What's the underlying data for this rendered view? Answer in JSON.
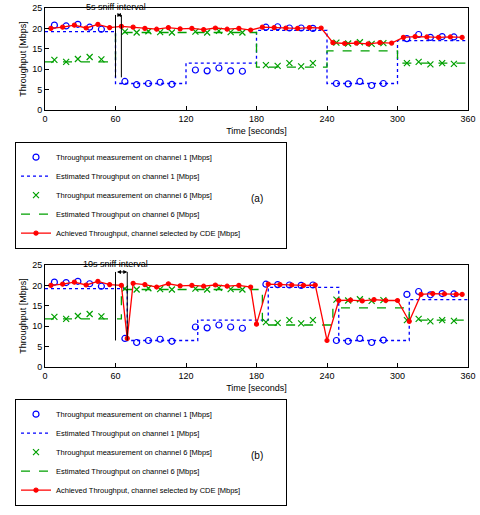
{
  "chart_data": [
    {
      "type": "line",
      "label": "(a)",
      "xlabel": "Time [seconds]",
      "ylabel": "Throughput [Mbps]",
      "xlim": [
        0,
        360
      ],
      "ylim": [
        0,
        25
      ],
      "xticks": [
        0,
        60,
        120,
        180,
        240,
        300,
        360
      ],
      "yticks": [
        0,
        5,
        10,
        15,
        20,
        25
      ],
      "grid": false,
      "legend": "below",
      "annotations": [
        {
          "text": "5s sniff interval",
          "x0": 60,
          "x1": 65,
          "y": 23.3,
          "y_end": 8
        }
      ],
      "series": [
        {
          "name": "Throughput measurement on channel 1 [Mbps]",
          "color": "#0000ff",
          "marker": "circle-open",
          "line_style": "none",
          "x": [
            8,
            18,
            28,
            38,
            48,
            68,
            78,
            88,
            98,
            108,
            128,
            138,
            148,
            158,
            168,
            188,
            198,
            208,
            218,
            228,
            248,
            258,
            268,
            278,
            288,
            308,
            318,
            328,
            338,
            348
          ],
          "values": [
            20.8,
            20.6,
            21.0,
            20.3,
            19.8,
            7.0,
            6.2,
            6.5,
            6.8,
            6.3,
            9.8,
            9.6,
            10.3,
            9.6,
            9.5,
            20.3,
            20.4,
            20.1,
            20.1,
            20.0,
            6.5,
            6.4,
            7.0,
            6.0,
            6.5,
            17.5,
            18.5,
            17.8,
            18.0,
            17.9
          ]
        },
        {
          "name": "Estimated Throughput on channel 1 [Mbps]",
          "color": "#0000ff",
          "marker": "none",
          "line_style": "dotted",
          "type": "step",
          "x": [
            0,
            60,
            120,
            180,
            240,
            300,
            360
          ],
          "values": [
            19.2,
            6.5,
            11.5,
            19.5,
            6.5,
            17.0,
            17.0
          ]
        },
        {
          "name": "Throughput measurement on channel 6 [Mbps]",
          "color": "#00a000",
          "marker": "x",
          "line_style": "none",
          "x": [
            8,
            18,
            28,
            38,
            48,
            68,
            78,
            88,
            98,
            108,
            128,
            138,
            148,
            158,
            168,
            188,
            198,
            208,
            218,
            228,
            248,
            258,
            268,
            278,
            288,
            308,
            318,
            328,
            338,
            348
          ],
          "values": [
            12.3,
            11.8,
            12.5,
            13.0,
            12.4,
            19.2,
            19.0,
            19.3,
            19.1,
            19.0,
            19.2,
            19.0,
            19.4,
            19.1,
            19.0,
            11.0,
            10.8,
            11.5,
            10.7,
            11.5,
            16.5,
            16.3,
            16.6,
            16.2,
            16.4,
            11.5,
            11.8,
            11.2,
            11.5,
            11.3
          ]
        },
        {
          "name": "Estimated Throughput on channel 6 [Mbps]",
          "color": "#00a000",
          "marker": "none",
          "line_style": "dashed",
          "type": "step",
          "x": [
            0,
            60,
            180,
            240,
            300,
            360
          ],
          "values": [
            11.8,
            19.0,
            10.5,
            14.5,
            11.5,
            11.5
          ]
        },
        {
          "name": "Achieved Throughput, channel selected by CDE [Mbps]",
          "color": "#ff0000",
          "marker": "circle",
          "line_style": "solid",
          "x": [
            5,
            15,
            25,
            35,
            45,
            55,
            65,
            75,
            85,
            95,
            105,
            115,
            125,
            135,
            145,
            155,
            165,
            175,
            185,
            195,
            205,
            215,
            225,
            235,
            245,
            255,
            265,
            275,
            285,
            295,
            305,
            315,
            325,
            335,
            345,
            355
          ],
          "values": [
            20.0,
            20.3,
            20.8,
            20.1,
            21.0,
            20.2,
            20.5,
            20.3,
            20.0,
            19.8,
            20.2,
            19.9,
            20.0,
            19.7,
            20.1,
            19.8,
            20.0,
            19.6,
            20.3,
            20.2,
            20.1,
            20.0,
            20.2,
            20.1,
            16.5,
            16.3,
            16.4,
            16.2,
            16.5,
            16.4,
            17.8,
            18.0,
            17.9,
            17.8,
            17.9,
            17.8
          ]
        }
      ]
    },
    {
      "type": "line",
      "label": "(b)",
      "xlabel": "Time [seconds]",
      "ylabel": "Throughput [Mbps]",
      "xlim": [
        0,
        360
      ],
      "ylim": [
        0,
        25
      ],
      "xticks": [
        0,
        60,
        120,
        180,
        240,
        300,
        360
      ],
      "yticks": [
        0,
        5,
        10,
        15,
        20,
        25
      ],
      "grid": false,
      "legend": "below",
      "annotations": [
        {
          "text": "10s sniff interval",
          "x0": 60,
          "x1": 70,
          "y": 23.3,
          "y_end": 6.5
        }
      ],
      "series": [
        {
          "name": "Throughput measurement on channel 1 [Mbps]",
          "color": "#0000ff",
          "marker": "circle-open",
          "line_style": "none",
          "x": [
            8,
            18,
            28,
            38,
            48,
            68,
            78,
            88,
            98,
            108,
            128,
            138,
            148,
            158,
            168,
            188,
            198,
            208,
            218,
            228,
            248,
            258,
            268,
            278,
            288,
            308,
            318,
            328,
            338,
            348
          ],
          "values": [
            20.8,
            20.7,
            21.0,
            20.4,
            19.8,
            7.0,
            6.0,
            6.5,
            6.8,
            6.3,
            9.8,
            9.6,
            10.3,
            9.8,
            9.5,
            20.3,
            20.2,
            20.1,
            20.0,
            20.1,
            6.5,
            6.3,
            7.0,
            6.0,
            6.6,
            17.8,
            18.5,
            17.7,
            18.0,
            17.9
          ]
        },
        {
          "name": "Estimated Throughput on channel 1 [Mbps]",
          "color": "#0000ff",
          "marker": "none",
          "line_style": "dotted",
          "type": "step",
          "x": [
            0,
            70,
            130,
            190,
            250,
            310,
            360
          ],
          "values": [
            19.2,
            6.5,
            11.5,
            19.5,
            6.5,
            16.5,
            16.5
          ]
        },
        {
          "name": "Throughput measurement on channel 6 [Mbps]",
          "color": "#00a000",
          "marker": "x",
          "line_style": "none",
          "x": [
            8,
            18,
            28,
            38,
            48,
            68,
            78,
            88,
            98,
            108,
            128,
            138,
            148,
            158,
            168,
            188,
            198,
            208,
            218,
            228,
            248,
            258,
            268,
            278,
            288,
            308,
            318,
            328,
            338,
            348
          ],
          "values": [
            12.3,
            11.8,
            12.5,
            13.0,
            12.4,
            19.2,
            19.0,
            19.3,
            19.1,
            19.0,
            19.2,
            19.0,
            19.4,
            19.1,
            19.0,
            11.0,
            10.8,
            11.5,
            10.7,
            11.5,
            16.5,
            16.3,
            16.6,
            16.2,
            16.4,
            11.5,
            11.8,
            11.2,
            11.5,
            11.3
          ]
        },
        {
          "name": "Estimated Throughput on channel 6 [Mbps]",
          "color": "#00a000",
          "marker": "none",
          "line_style": "dashed",
          "type": "step",
          "x": [
            0,
            65,
            185,
            245,
            310,
            360
          ],
          "values": [
            11.8,
            19.0,
            10.3,
            14.5,
            11.5,
            11.5
          ]
        },
        {
          "name": "Achieved Throughput, channel selected by CDE [Mbps]",
          "color": "#ff0000",
          "marker": "circle",
          "line_style": "solid",
          "x": [
            5,
            15,
            25,
            35,
            45,
            55,
            65,
            70,
            75,
            85,
            95,
            105,
            115,
            125,
            135,
            145,
            155,
            165,
            175,
            180,
            190,
            200,
            210,
            220,
            230,
            240,
            250,
            260,
            270,
            280,
            290,
            300,
            310,
            320,
            330,
            340,
            350,
            355
          ],
          "values": [
            20.0,
            20.3,
            20.8,
            20.1,
            21.0,
            20.2,
            20.0,
            7.0,
            20.5,
            20.2,
            19.6,
            20.4,
            19.9,
            20.0,
            19.8,
            20.1,
            19.8,
            20.0,
            19.6,
            10.5,
            20.3,
            20.2,
            20.1,
            20.0,
            20.1,
            6.5,
            16.3,
            16.4,
            16.2,
            16.5,
            16.3,
            16.3,
            11.2,
            17.8,
            18.0,
            17.9,
            17.8,
            17.8
          ]
        }
      ]
    }
  ]
}
